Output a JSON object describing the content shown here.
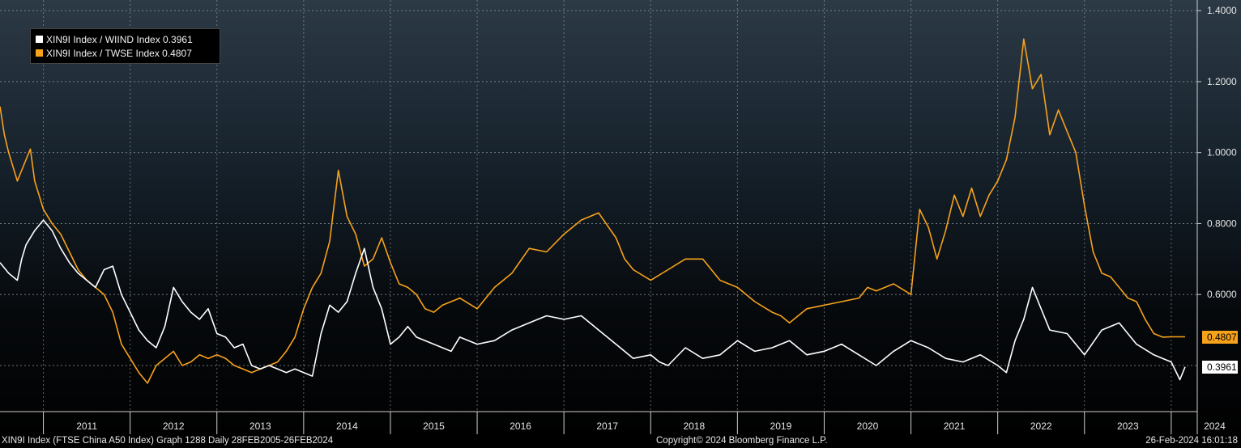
{
  "legend": {
    "series1": "XIN9I Index / WIIND Index 0.3961",
    "series2": "XIN9I Index / TWSE Index  0.4807"
  },
  "footer": {
    "left": "XIN9I Index (FTSE China A50 Index) Graph 1288  Daily 28FEB2005-26FEB2024",
    "middle": "Copyright© 2024 Bloomberg Finance L.P.",
    "right": "26-Feb-2024 16:01:18"
  },
  "last_values": {
    "white": "0.3961",
    "orange": "0.4807"
  },
  "colors": {
    "white_series": "#ffffff",
    "orange_series": "#f7a21b",
    "background_top": "#2c3a46",
    "background_bottom": "#000000"
  },
  "chart_data": {
    "type": "line",
    "x_ticks": [
      "2011",
      "2012",
      "2013",
      "2014",
      "2015",
      "2016",
      "2017",
      "2018",
      "2019",
      "2020",
      "2021",
      "2022",
      "2023",
      "2024"
    ],
    "y_ticks": [
      "1.4000",
      "1.2000",
      "1.0000",
      "0.8000",
      "0.6000"
    ],
    "ylim": [
      0.27,
      1.43
    ],
    "xlim": [
      2010.5,
      2024.3
    ],
    "grid": true,
    "legend_position": "top-left",
    "series": [
      {
        "name": "XIN9I Index / WIIND Index",
        "color": "#ffffff",
        "last": 0.3961,
        "x": [
          2010.5,
          2010.6,
          2010.7,
          2010.75,
          2010.8,
          2010.9,
          2011.0,
          2011.1,
          2011.2,
          2011.3,
          2011.4,
          2011.5,
          2011.6,
          2011.7,
          2011.8,
          2011.9,
          2012.0,
          2012.1,
          2012.2,
          2012.3,
          2012.4,
          2012.5,
          2012.6,
          2012.7,
          2012.8,
          2012.9,
          2013.0,
          2013.1,
          2013.2,
          2013.3,
          2013.4,
          2013.5,
          2013.6,
          2013.7,
          2013.8,
          2013.9,
          2014.0,
          2014.1,
          2014.2,
          2014.3,
          2014.4,
          2014.5,
          2014.6,
          2014.7,
          2014.8,
          2014.9,
          2015.0,
          2015.1,
          2015.2,
          2015.3,
          2015.4,
          2015.5,
          2015.6,
          2015.7,
          2015.8,
          2015.9,
          2016.0,
          2016.2,
          2016.4,
          2016.6,
          2016.8,
          2017.0,
          2017.2,
          2017.4,
          2017.6,
          2017.8,
          2018.0,
          2018.1,
          2018.2,
          2018.4,
          2018.6,
          2018.8,
          2019.0,
          2019.2,
          2019.4,
          2019.6,
          2019.8,
          2020.0,
          2020.2,
          2020.4,
          2020.6,
          2020.8,
          2021.0,
          2021.2,
          2021.4,
          2021.6,
          2021.8,
          2022.0,
          2022.1,
          2022.2,
          2022.3,
          2022.4,
          2022.6,
          2022.8,
          2023.0,
          2023.2,
          2023.4,
          2023.6,
          2023.8,
          2023.9,
          2024.0,
          2024.1,
          2024.16
        ],
        "y": [
          0.69,
          0.66,
          0.64,
          0.7,
          0.74,
          0.78,
          0.81,
          0.78,
          0.73,
          0.69,
          0.66,
          0.64,
          0.62,
          0.67,
          0.68,
          0.6,
          0.55,
          0.5,
          0.47,
          0.45,
          0.51,
          0.62,
          0.58,
          0.55,
          0.53,
          0.56,
          0.49,
          0.48,
          0.45,
          0.46,
          0.4,
          0.39,
          0.4,
          0.39,
          0.38,
          0.39,
          0.38,
          0.37,
          0.49,
          0.57,
          0.55,
          0.58,
          0.66,
          0.73,
          0.62,
          0.56,
          0.46,
          0.48,
          0.51,
          0.48,
          0.47,
          0.46,
          0.45,
          0.44,
          0.48,
          0.47,
          0.46,
          0.47,
          0.5,
          0.52,
          0.54,
          0.53,
          0.54,
          0.5,
          0.46,
          0.42,
          0.43,
          0.41,
          0.4,
          0.45,
          0.42,
          0.43,
          0.47,
          0.44,
          0.45,
          0.47,
          0.43,
          0.44,
          0.46,
          0.43,
          0.4,
          0.44,
          0.47,
          0.45,
          0.42,
          0.41,
          0.43,
          0.4,
          0.38,
          0.47,
          0.53,
          0.62,
          0.5,
          0.49,
          0.43,
          0.5,
          0.52,
          0.46,
          0.43,
          0.42,
          0.41,
          0.36,
          0.3961
        ]
      },
      {
        "name": "XIN9I Index / TWSE Index",
        "color": "#f7a21b",
        "last": 0.4807,
        "x": [
          2010.5,
          2010.55,
          2010.6,
          2010.7,
          2010.8,
          2010.85,
          2010.9,
          2011.0,
          2011.1,
          2011.2,
          2011.3,
          2011.4,
          2011.5,
          2011.6,
          2011.7,
          2011.8,
          2011.9,
          2012.0,
          2012.1,
          2012.2,
          2012.3,
          2012.4,
          2012.5,
          2012.6,
          2012.7,
          2012.8,
          2012.9,
          2013.0,
          2013.1,
          2013.2,
          2013.3,
          2013.4,
          2013.5,
          2013.6,
          2013.7,
          2013.8,
          2013.9,
          2014.0,
          2014.1,
          2014.2,
          2014.3,
          2014.4,
          2014.5,
          2014.6,
          2014.7,
          2014.8,
          2014.9,
          2015.0,
          2015.1,
          2015.2,
          2015.3,
          2015.4,
          2015.5,
          2015.6,
          2015.7,
          2015.8,
          2016.0,
          2016.2,
          2016.4,
          2016.6,
          2016.8,
          2017.0,
          2017.2,
          2017.4,
          2017.6,
          2017.7,
          2017.8,
          2018.0,
          2018.2,
          2018.4,
          2018.6,
          2018.8,
          2019.0,
          2019.2,
          2019.4,
          2019.5,
          2019.6,
          2019.8,
          2020.0,
          2020.2,
          2020.4,
          2020.5,
          2020.6,
          2020.8,
          2021.0,
          2021.1,
          2021.2,
          2021.3,
          2021.4,
          2021.5,
          2021.6,
          2021.7,
          2021.8,
          2021.9,
          2022.0,
          2022.1,
          2022.2,
          2022.3,
          2022.4,
          2022.5,
          2022.6,
          2022.7,
          2022.8,
          2022.9,
          2023.0,
          2023.1,
          2023.2,
          2023.3,
          2023.4,
          2023.5,
          2023.6,
          2023.7,
          2023.8,
          2023.9,
          2024.0,
          2024.1,
          2024.16
        ],
        "y": [
          1.13,
          1.05,
          1.0,
          0.92,
          0.98,
          1.01,
          0.92,
          0.84,
          0.8,
          0.77,
          0.72,
          0.67,
          0.64,
          0.62,
          0.6,
          0.55,
          0.46,
          0.42,
          0.38,
          0.35,
          0.4,
          0.42,
          0.44,
          0.4,
          0.41,
          0.43,
          0.42,
          0.43,
          0.42,
          0.4,
          0.39,
          0.38,
          0.39,
          0.4,
          0.41,
          0.44,
          0.48,
          0.56,
          0.62,
          0.66,
          0.75,
          0.95,
          0.82,
          0.77,
          0.68,
          0.7,
          0.76,
          0.69,
          0.63,
          0.62,
          0.6,
          0.56,
          0.55,
          0.57,
          0.58,
          0.59,
          0.56,
          0.62,
          0.66,
          0.73,
          0.72,
          0.77,
          0.81,
          0.83,
          0.76,
          0.7,
          0.67,
          0.64,
          0.67,
          0.7,
          0.7,
          0.64,
          0.62,
          0.58,
          0.55,
          0.54,
          0.52,
          0.56,
          0.57,
          0.58,
          0.59,
          0.62,
          0.61,
          0.63,
          0.6,
          0.84,
          0.79,
          0.7,
          0.78,
          0.88,
          0.82,
          0.9,
          0.82,
          0.88,
          0.92,
          0.98,
          1.1,
          1.32,
          1.18,
          1.22,
          1.05,
          1.12,
          1.06,
          1.0,
          0.85,
          0.72,
          0.66,
          0.65,
          0.62,
          0.59,
          0.58,
          0.53,
          0.49,
          0.48,
          0.4807,
          0.4807,
          0.4807
        ]
      }
    ]
  }
}
